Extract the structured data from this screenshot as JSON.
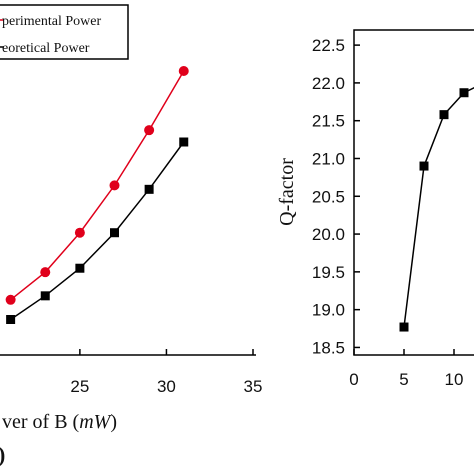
{
  "chart_data": [
    {
      "type": "line",
      "title": "",
      "xlabel": "ver of B (mW)",
      "xlabel_text": "ver of B (",
      "xlabel_unit": "mW",
      "xlabel_close": ")",
      "ylabel": "",
      "xlim": [
        19,
        35
      ],
      "ylim": [
        0.5,
        5.0
      ],
      "x_ticks": [
        20,
        25,
        30,
        35
      ],
      "x_tick_labels": [
        "",
        "25",
        "30",
        "35"
      ],
      "grid": false,
      "legend_position": "top-left",
      "panel_label": ")",
      "series": [
        {
          "name": "perimental Power",
          "color": "#e0001b",
          "marker": "circle",
          "x": [
            21,
            23,
            25,
            27,
            29,
            31
          ],
          "y": [
            1.2,
            1.55,
            2.05,
            2.65,
            3.35,
            4.1
          ]
        },
        {
          "name": "eoretical Power",
          "color": "#000000",
          "marker": "square",
          "x": [
            21,
            23,
            25,
            27,
            29,
            31
          ],
          "y": [
            0.95,
            1.25,
            1.6,
            2.05,
            2.6,
            3.2
          ]
        }
      ]
    },
    {
      "type": "line",
      "title": "",
      "xlabel": "",
      "ylabel": "Q-factor",
      "xlim": [
        0,
        13
      ],
      "ylim": [
        18.4,
        22.7
      ],
      "x_ticks": [
        0,
        5,
        10
      ],
      "x_tick_labels": [
        "0",
        "5",
        "10"
      ],
      "y_ticks": [
        18.5,
        19.0,
        19.5,
        20.0,
        20.5,
        21.0,
        21.5,
        22.0,
        22.5
      ],
      "y_tick_labels": [
        "18.5",
        "19.0",
        "19.5",
        "20.0",
        "20.5",
        "21.0",
        "21.5",
        "22.0",
        "22.5"
      ],
      "grid": false,
      "series": [
        {
          "color": "#000000",
          "marker": "square",
          "x": [
            5,
            7,
            9,
            11,
            13
          ],
          "y": [
            18.77,
            20.9,
            21.58,
            21.87,
            22.0
          ]
        }
      ]
    }
  ]
}
